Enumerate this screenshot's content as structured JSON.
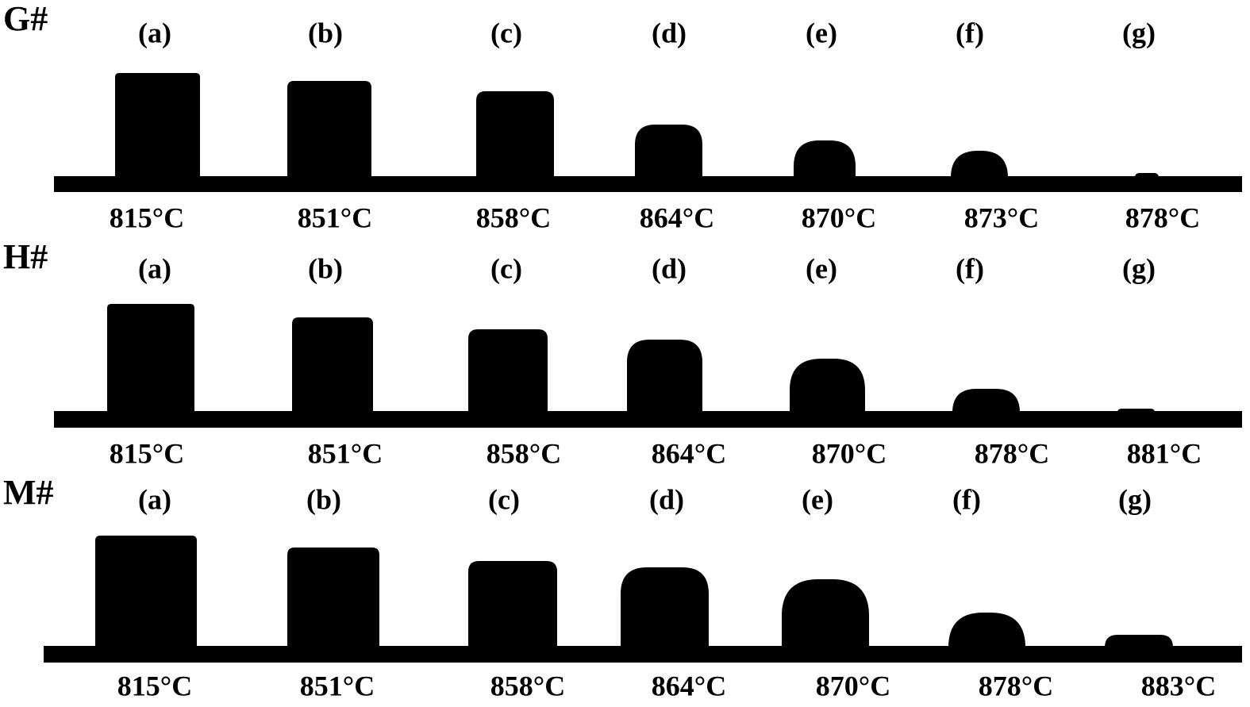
{
  "rows": [
    {
      "label": "G#",
      "panels": [
        {
          "letter": "(a)",
          "temperature": "815°C"
        },
        {
          "letter": "(b)",
          "temperature": "851°C"
        },
        {
          "letter": "(c)",
          "temperature": "858°C"
        },
        {
          "letter": "(d)",
          "temperature": "864°C"
        },
        {
          "letter": "(e)",
          "temperature": "870°C"
        },
        {
          "letter": "(f)",
          "temperature": "873°C"
        },
        {
          "letter": "(g)",
          "temperature": "878°C"
        }
      ]
    },
    {
      "label": "H#",
      "panels": [
        {
          "letter": "(a)",
          "temperature": "815°C"
        },
        {
          "letter": "(b)",
          "temperature": "851°C"
        },
        {
          "letter": "(c)",
          "temperature": "858°C"
        },
        {
          "letter": "(d)",
          "temperature": "864°C"
        },
        {
          "letter": "(e)",
          "temperature": "870°C"
        },
        {
          "letter": "(f)",
          "temperature": "878°C"
        },
        {
          "letter": "(g)",
          "temperature": "881°C"
        }
      ]
    },
    {
      "label": "M#",
      "panels": [
        {
          "letter": "(a)",
          "temperature": "815°C"
        },
        {
          "letter": "(b)",
          "temperature": "851°C"
        },
        {
          "letter": "(c)",
          "temperature": "858°C"
        },
        {
          "letter": "(d)",
          "temperature": "864°C"
        },
        {
          "letter": "(e)",
          "temperature": "870°C"
        },
        {
          "letter": "(f)",
          "temperature": "878°C"
        },
        {
          "letter": "(g)",
          "temperature": "883°C"
        }
      ]
    }
  ]
}
